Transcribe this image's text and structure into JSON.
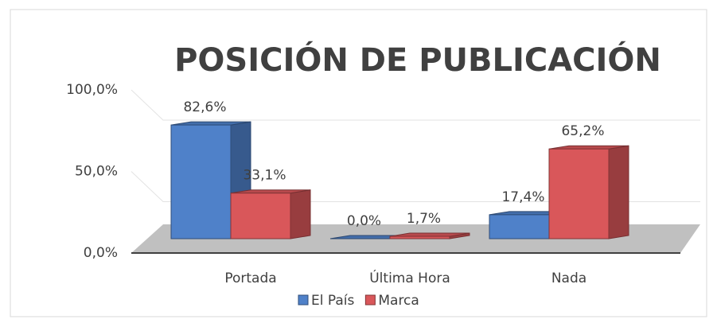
{
  "chart_data": {
    "type": "bar3d",
    "title": "POSICIÓN DE PUBLICACIÓN",
    "categories": [
      "Portada",
      "Última Hora",
      "Nada"
    ],
    "series": [
      {
        "name": "El País",
        "color": "#4f81c9",
        "values": [
          82.6,
          0,
          17.4
        ],
        "value_labels": [
          "82,6%",
          "0,0%",
          "17,4%"
        ]
      },
      {
        "name": "Marca",
        "color": "#d9575a",
        "values": [
          33.1,
          1.7,
          65.2
        ],
        "value_labels": [
          "33,1%",
          "1,7%",
          "65,2%"
        ]
      }
    ],
    "ylim": [
      0,
      100
    ],
    "yticks": [
      {
        "value": 0,
        "label": "0,0%"
      },
      {
        "value": 50,
        "label": "50,0%"
      },
      {
        "value": 100,
        "label": "100,0%"
      }
    ],
    "grid": true,
    "legend": "bottom"
  }
}
